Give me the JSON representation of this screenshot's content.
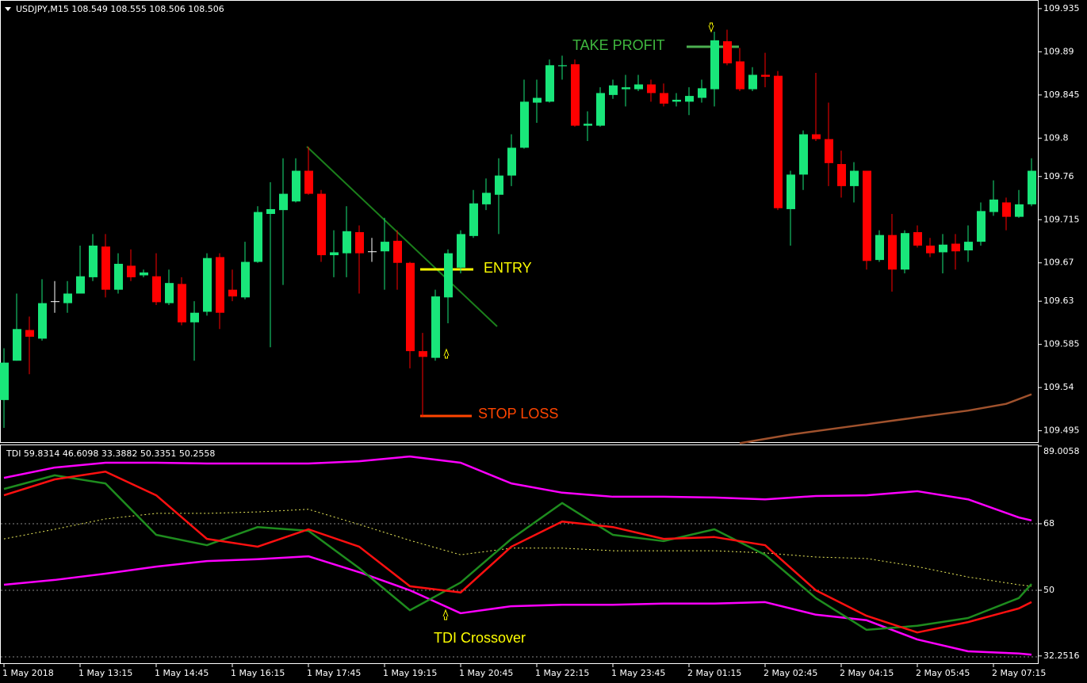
{
  "chart_data": [
    {
      "type": "candlestick",
      "title": "USDJPY,M15  108.549 108.555 108.506 108.506",
      "up_color": "#19e67a",
      "down_color": "#ff0000",
      "doji_color": "#ffffff",
      "candles": [
        [
          109.527,
          109.581,
          109.498,
          109.566
        ],
        [
          109.568,
          109.638,
          109.568,
          109.601
        ],
        [
          109.6,
          109.614,
          109.554,
          109.593
        ],
        [
          109.591,
          109.653,
          109.589,
          109.628
        ],
        [
          109.63,
          109.651,
          109.618,
          109.63
        ],
        [
          109.628,
          109.651,
          109.618,
          109.638
        ],
        [
          109.638,
          109.688,
          109.638,
          109.656
        ],
        [
          109.655,
          109.7,
          109.651,
          109.688
        ],
        [
          109.687,
          109.7,
          109.634,
          109.642
        ],
        [
          109.642,
          109.68,
          109.638,
          109.669
        ],
        [
          109.667,
          109.684,
          109.651,
          109.655
        ],
        [
          109.657,
          109.663,
          109.655,
          109.66
        ],
        [
          109.656,
          109.68,
          109.626,
          109.629
        ],
        [
          109.628,
          109.663,
          109.626,
          109.649
        ],
        [
          109.648,
          109.655,
          109.605,
          109.608
        ],
        [
          109.608,
          109.63,
          109.568,
          109.618
        ],
        [
          109.619,
          109.68,
          109.615,
          109.675
        ],
        [
          109.676,
          109.68,
          109.601,
          109.618
        ],
        [
          109.642,
          109.663,
          109.63,
          109.635
        ],
        [
          109.634,
          109.692,
          109.632,
          109.671
        ],
        [
          109.671,
          109.729,
          109.67,
          109.723
        ],
        [
          109.721,
          109.754,
          109.582,
          109.726
        ],
        [
          109.725,
          109.779,
          109.647,
          109.742
        ],
        [
          109.734,
          109.779,
          109.733,
          109.766
        ],
        [
          109.766,
          109.791,
          109.741,
          109.742
        ],
        [
          109.742,
          109.746,
          109.671,
          109.678
        ],
        [
          109.678,
          109.704,
          109.655,
          109.681
        ],
        [
          109.68,
          109.729,
          109.655,
          109.703
        ],
        [
          109.702,
          109.709,
          109.638,
          109.68
        ],
        [
          109.682,
          109.696,
          109.671,
          109.682
        ],
        [
          109.682,
          109.717,
          109.642,
          109.692
        ],
        [
          109.693,
          109.704,
          109.642,
          109.67
        ],
        [
          109.67,
          109.671,
          109.56,
          109.578
        ],
        [
          109.578,
          109.597,
          109.51,
          109.572
        ],
        [
          109.571,
          109.642,
          109.568,
          109.635
        ],
        [
          109.634,
          109.684,
          109.607,
          109.68
        ],
        [
          109.665,
          109.704,
          109.659,
          109.7
        ],
        [
          109.698,
          109.746,
          109.696,
          109.732
        ],
        [
          109.731,
          109.758,
          109.725,
          109.743
        ],
        [
          109.741,
          109.779,
          109.7,
          109.761
        ],
        [
          109.761,
          109.804,
          109.75,
          109.79
        ],
        [
          109.79,
          109.861,
          109.789,
          109.838
        ],
        [
          109.837,
          109.861,
          109.816,
          109.842
        ],
        [
          109.838,
          109.882,
          109.837,
          109.876
        ],
        [
          109.875,
          109.886,
          109.861,
          109.876
        ],
        [
          109.877,
          109.882,
          109.812,
          109.813
        ],
        [
          109.813,
          109.828,
          109.797,
          109.815
        ],
        [
          109.813,
          109.853,
          109.812,
          109.847
        ],
        [
          109.845,
          109.861,
          109.841,
          109.855
        ],
        [
          109.851,
          109.866,
          109.833,
          109.853
        ],
        [
          109.851,
          109.866,
          109.849,
          109.856
        ],
        [
          109.856,
          109.861,
          109.838,
          109.847
        ],
        [
          109.847,
          109.857,
          109.833,
          109.836
        ],
        [
          109.838,
          109.847,
          109.833,
          109.84
        ],
        [
          109.838,
          109.853,
          109.824,
          109.844
        ],
        [
          109.842,
          109.861,
          109.837,
          109.852
        ],
        [
          109.851,
          109.911,
          109.833,
          109.902
        ],
        [
          109.901,
          109.913,
          109.876,
          109.878
        ],
        [
          109.88,
          109.894,
          109.849,
          109.851
        ],
        [
          109.851,
          109.874,
          109.849,
          109.866
        ],
        [
          109.866,
          109.889,
          109.853,
          109.864
        ],
        [
          109.865,
          109.87,
          109.725,
          109.727
        ],
        [
          109.726,
          109.766,
          109.688,
          109.762
        ],
        [
          109.762,
          109.808,
          109.746,
          109.804
        ],
        [
          109.804,
          109.868,
          109.797,
          109.799
        ],
        [
          109.799,
          109.837,
          109.75,
          109.774
        ],
        [
          109.773,
          109.787,
          109.738,
          109.75
        ],
        [
          109.75,
          109.775,
          109.733,
          109.766
        ],
        [
          109.766,
          109.766,
          109.663,
          109.672
        ],
        [
          109.673,
          109.704,
          109.671,
          109.699
        ],
        [
          109.699,
          109.721,
          109.64,
          109.663
        ],
        [
          109.663,
          109.704,
          109.659,
          109.701
        ],
        [
          109.702,
          109.709,
          109.686,
          109.688
        ],
        [
          109.688,
          109.696,
          109.676,
          109.68
        ],
        [
          109.681,
          109.7,
          109.659,
          109.689
        ],
        [
          109.69,
          109.7,
          109.663,
          109.682
        ],
        [
          109.683,
          109.709,
          109.671,
          109.692
        ],
        [
          109.692,
          109.733,
          109.688,
          109.724
        ],
        [
          109.723,
          109.756,
          109.719,
          109.736
        ],
        [
          109.733,
          109.738,
          109.704,
          109.718
        ],
        [
          109.718,
          109.746,
          109.717,
          109.731
        ],
        [
          109.731,
          109.779,
          109.729,
          109.766
        ]
      ],
      "ma": {
        "color": "#a0522d",
        "x": [
          58,
          62,
          67,
          72,
          76,
          79,
          81
        ],
        "values": [
          109.482,
          109.491,
          109.5,
          109.509,
          109.516,
          109.523,
          109.533
        ]
      },
      "ylim": [
        109.4823,
        109.944
      ],
      "yticks": [
        109.935,
        109.89,
        109.845,
        109.8,
        109.76,
        109.715,
        109.67,
        109.63,
        109.585,
        109.54,
        109.495
      ],
      "annotations": {
        "take_profit": "TAKE PROFIT",
        "entry": "ENTRY",
        "stop_loss": "STOP LOSS"
      }
    },
    {
      "type": "line",
      "title": "TDI 59.8314 46.6098 33.3882 50.3351 50.2558",
      "x": [
        0,
        4,
        8,
        12,
        16,
        20,
        24,
        28,
        32,
        36,
        40,
        44,
        48,
        52,
        56,
        60,
        64,
        68,
        72,
        76,
        80,
        81
      ],
      "series": [
        {
          "color": "#ff00ff",
          "values": [
            80.4,
            83.2,
            84.5,
            84.5,
            84.3,
            84.3,
            84.3,
            84.9,
            86.2,
            84.5,
            78.9,
            76.4,
            75.3,
            75.3,
            75.1,
            74.6,
            75.5,
            75.7,
            76.8,
            74.6,
            69.7,
            68.9
          ]
        },
        {
          "color": "#ff00ff",
          "values": [
            51.5,
            52.8,
            54.5,
            56.4,
            57.9,
            58.4,
            59.2,
            54.9,
            50.0,
            43.8,
            45.7,
            46.1,
            46.1,
            46.4,
            46.4,
            46.8,
            43.4,
            41.9,
            36.7,
            33.5,
            32.9,
            32.6
          ]
        },
        {
          "color": "#e8e85a",
          "dashed": true,
          "values": [
            63.9,
            66.5,
            69.3,
            70.8,
            70.8,
            71.2,
            71.9,
            67.8,
            63.5,
            59.6,
            61.4,
            61.4,
            60.7,
            60.7,
            60.7,
            60.1,
            59.0,
            58.6,
            56.4,
            53.6,
            51.5,
            51.1
          ]
        },
        {
          "color": "#1e8c1e",
          "values": [
            77.4,
            81.1,
            78.9,
            65.0,
            62.2,
            67.1,
            66.1,
            56.0,
            44.6,
            52.1,
            63.9,
            73.6,
            65.0,
            63.3,
            66.5,
            59.6,
            47.9,
            39.3,
            40.4,
            42.5,
            47.9,
            51.7
          ]
        },
        {
          "color": "#ff1010",
          "values": [
            75.7,
            80.0,
            82.1,
            75.7,
            63.9,
            61.8,
            66.5,
            61.8,
            51.1,
            49.4,
            61.8,
            68.6,
            67.1,
            63.9,
            64.4,
            62.2,
            50.0,
            43.1,
            38.6,
            41.4,
            45.1,
            46.8
          ]
        }
      ],
      "ylim": [
        30.07,
        89.43
      ],
      "yticks": [
        89.0058,
        68,
        50,
        32.2516
      ],
      "levels": [
        68,
        50,
        32
      ],
      "annotation": "TDI Crossover",
      "time_labels": [
        "1 May 2018",
        "1 May 13:15",
        "1 May 14:45",
        "1 May 16:15",
        "1 May 17:45",
        "1 May 19:15",
        "1 May 20:45",
        "1 May 22:15",
        "1 May 23:45",
        "2 May 01:15",
        "2 May 02:45",
        "2 May 04:15",
        "2 May 05:45",
        "2 May 07:15"
      ]
    }
  ]
}
